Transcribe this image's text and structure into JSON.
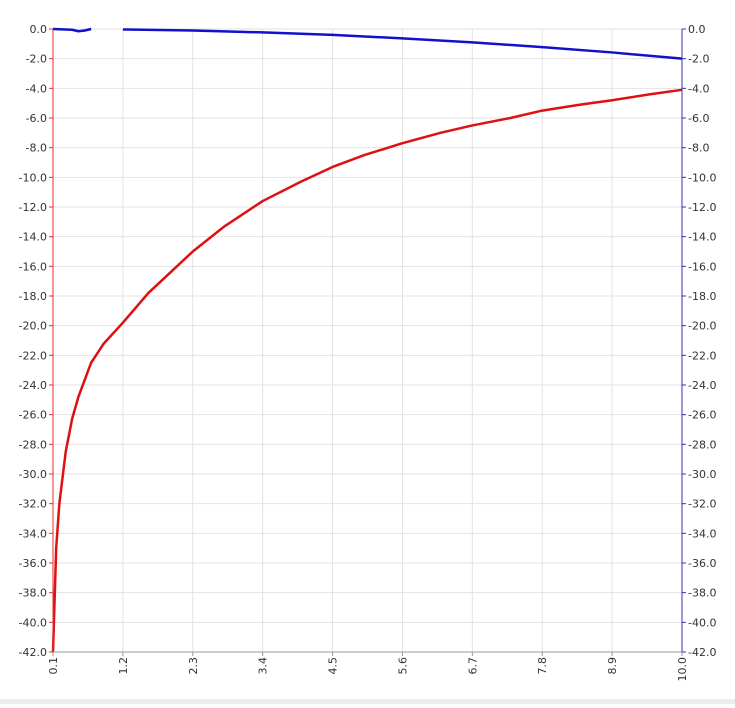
{
  "chart_data": {
    "type": "line",
    "xlim": [
      0.1,
      10
    ],
    "xticks": [
      0.1,
      1.2,
      2.3,
      3.4,
      4.5,
      5.6,
      6.7,
      7.8,
      8.9,
      {
        "value": 10,
        "label": "10.0"
      }
    ],
    "ylim": [
      -42,
      0
    ],
    "yticks": [
      {
        "value": 0,
        "label": "0.0"
      },
      {
        "value": -2,
        "label": "-2.0"
      },
      {
        "value": -4,
        "label": "-4.0"
      },
      {
        "value": -6,
        "label": "-6.0"
      },
      {
        "value": -8,
        "label": "-8.0"
      },
      {
        "value": -10,
        "label": "-10.0"
      },
      {
        "value": -12,
        "label": "-12.0"
      },
      {
        "value": -14,
        "label": "-14.0"
      },
      {
        "value": -16,
        "label": "-16.0"
      },
      {
        "value": -18,
        "label": "-18.0"
      },
      {
        "value": -20,
        "label": "-20.0"
      },
      {
        "value": -22,
        "label": "-22.0"
      },
      {
        "value": -24,
        "label": "-24.0"
      },
      {
        "value": -26,
        "label": "-26.0"
      },
      {
        "value": -28,
        "label": "-28.0"
      },
      {
        "value": -30,
        "label": "-30.0"
      },
      {
        "value": -32,
        "label": "-32.0"
      },
      {
        "value": -34,
        "label": "-34.0"
      },
      {
        "value": -36,
        "label": "-36.0"
      },
      {
        "value": -38,
        "label": "-38.0"
      },
      {
        "value": -40,
        "label": "-40.0"
      },
      {
        "value": -42,
        "label": "-42.0"
      }
    ],
    "y2lim": [
      -42,
      0
    ],
    "y2ticks": [
      {
        "value": 0,
        "label": "0.0"
      },
      {
        "value": -2,
        "label": "-2.0"
      },
      {
        "value": -4,
        "label": "-4.0"
      },
      {
        "value": -6,
        "label": "-6.0"
      },
      {
        "value": -8,
        "label": "-8.0"
      },
      {
        "value": -10,
        "label": "-10.0"
      },
      {
        "value": -12,
        "label": "-12.0"
      },
      {
        "value": -14,
        "label": "-14.0"
      },
      {
        "value": -16,
        "label": "-16.0"
      },
      {
        "value": -18,
        "label": "-18.0"
      },
      {
        "value": -20,
        "label": "-20.0"
      },
      {
        "value": -22,
        "label": "-22.0"
      },
      {
        "value": -24,
        "label": "-24.0"
      },
      {
        "value": -26,
        "label": "-26.0"
      },
      {
        "value": -28,
        "label": "-28.0"
      },
      {
        "value": -30,
        "label": "-30.0"
      },
      {
        "value": -32,
        "label": "-32.0"
      },
      {
        "value": -34,
        "label": "-34.0"
      },
      {
        "value": -36,
        "label": "-36.0"
      },
      {
        "value": -38,
        "label": "-38.0"
      },
      {
        "value": -40,
        "label": "-40.0"
      },
      {
        "value": -42,
        "label": "-42.0"
      }
    ],
    "grid": true,
    "y_axis_color": "#e03030",
    "y2_axis_color": "#3030b0",
    "series": [
      {
        "color": "#dd1111",
        "x": [
          0.1,
          0.15,
          0.2,
          0.3,
          0.4,
          0.5,
          0.7,
          0.9,
          1.2,
          1.6,
          2.0,
          2.3,
          2.8,
          3.4,
          4.0,
          4.5,
          5.0,
          5.6,
          6.2,
          6.7,
          7.3,
          7.8,
          8.4,
          8.9,
          9.5,
          10.0
        ],
        "values": [
          -42,
          -35,
          -32,
          -28.5,
          -26.3,
          -24.8,
          -22.5,
          -21.2,
          -19.8,
          -17.8,
          -16.2,
          -15,
          -13.3,
          -11.6,
          -10.3,
          -9.3,
          -8.5,
          -7.7,
          -7.0,
          -6.5,
          -6.0,
          -5.5,
          -5.1,
          -4.8,
          -4.4,
          -4.1
        ]
      },
      {
        "color": "#1111cc",
        "axis": "y2",
        "x": [
          0.1,
          0.4,
          0.5,
          0.6,
          0.7,
          0.9,
          1.2,
          2.3,
          3.4,
          4.5,
          5.6,
          6.7,
          7.8,
          8.9,
          10.0
        ],
        "values": [
          0,
          -0.05,
          -0.15,
          -0.1,
          0,
          null,
          -0.03,
          -0.1,
          -0.23,
          -0.4,
          -0.63,
          -0.9,
          -1.22,
          -1.58,
          -2.0
        ]
      }
    ]
  }
}
